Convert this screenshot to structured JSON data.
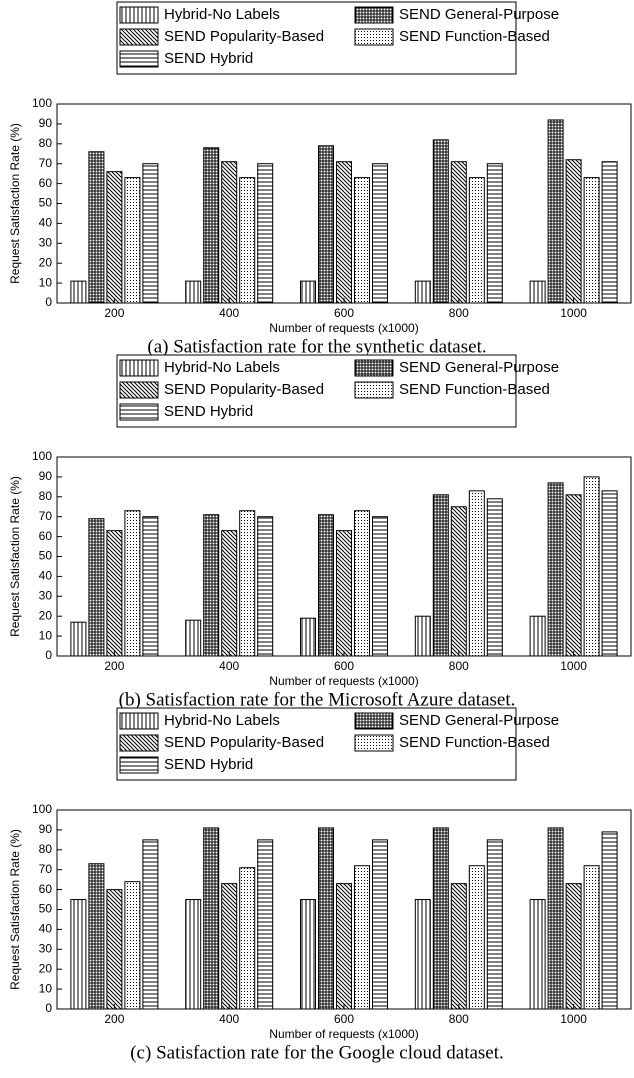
{
  "chart_data": [
    {
      "type": "bar",
      "caption": "(a) Satisfaction rate for the synthetic dataset.",
      "xlabel": "Number of requests (x1000)",
      "ylabel": "Request Satisfaction Rate (%)",
      "categories": [
        "200",
        "400",
        "600",
        "800",
        "1000"
      ],
      "ylim": [
        0,
        100
      ],
      "yticks": [
        0,
        10,
        20,
        30,
        40,
        50,
        60,
        70,
        80,
        90,
        100
      ],
      "series": [
        {
          "name": "Hybrid-No Labels",
          "color": "#000000",
          "hatch": "vertical",
          "values": [
            11,
            11,
            11,
            11,
            11
          ]
        },
        {
          "name": "SEND General-Purpose",
          "color": "#000000",
          "hatch": "grid",
          "values": [
            76,
            78,
            79,
            82,
            92
          ]
        },
        {
          "name": "SEND Popularity-Based",
          "color": "#000000",
          "hatch": "diagonal",
          "values": [
            66,
            71,
            71,
            71,
            72
          ]
        },
        {
          "name": "SEND Function-Based",
          "color": "#000000",
          "hatch": "dots",
          "values": [
            63,
            63,
            63,
            63,
            63
          ]
        },
        {
          "name": "SEND Hybrid",
          "color": "#000000",
          "hatch": "horizontal",
          "values": [
            70,
            70,
            70,
            70,
            71
          ]
        }
      ]
    },
    {
      "type": "bar",
      "caption": "(b) Satisfaction rate for the Microsoft Azure dataset.",
      "xlabel": "Number of requests (x1000)",
      "ylabel": "Request Satisfaction Rate (%)",
      "categories": [
        "200",
        "400",
        "600",
        "800",
        "1000"
      ],
      "ylim": [
        0,
        100
      ],
      "yticks": [
        0,
        10,
        20,
        30,
        40,
        50,
        60,
        70,
        80,
        90,
        100
      ],
      "series": [
        {
          "name": "Hybrid-No Labels",
          "color": "#000000",
          "hatch": "vertical",
          "values": [
            17,
            18,
            19,
            20,
            20
          ]
        },
        {
          "name": "SEND General-Purpose",
          "color": "#000000",
          "hatch": "grid",
          "values": [
            69,
            71,
            71,
            81,
            87
          ]
        },
        {
          "name": "SEND Popularity-Based",
          "color": "#000000",
          "hatch": "diagonal",
          "values": [
            63,
            63,
            63,
            75,
            81
          ]
        },
        {
          "name": "SEND Function-Based",
          "color": "#000000",
          "hatch": "dots",
          "values": [
            73,
            73,
            73,
            83,
            90
          ]
        },
        {
          "name": "SEND Hybrid",
          "color": "#000000",
          "hatch": "horizontal",
          "values": [
            70,
            70,
            70,
            79,
            83
          ]
        }
      ]
    },
    {
      "type": "bar",
      "caption": "(c) Satisfaction rate for the Google cloud dataset.",
      "xlabel": "Number of requests (x1000)",
      "ylabel": "Request Satisfaction Rate (%)",
      "categories": [
        "200",
        "400",
        "600",
        "800",
        "1000"
      ],
      "ylim": [
        0,
        100
      ],
      "yticks": [
        0,
        10,
        20,
        30,
        40,
        50,
        60,
        70,
        80,
        90,
        100
      ],
      "series": [
        {
          "name": "Hybrid-No Labels",
          "color": "#000000",
          "hatch": "vertical",
          "values": [
            55,
            55,
            55,
            55,
            55
          ]
        },
        {
          "name": "SEND General-Purpose",
          "color": "#000000",
          "hatch": "grid",
          "values": [
            73,
            91,
            91,
            91,
            91
          ]
        },
        {
          "name": "SEND Popularity-Based",
          "color": "#000000",
          "hatch": "diagonal",
          "values": [
            60,
            63,
            63,
            63,
            63
          ]
        },
        {
          "name": "SEND Function-Based",
          "color": "#000000",
          "hatch": "dots",
          "values": [
            64,
            71,
            72,
            72,
            72
          ]
        },
        {
          "name": "SEND Hybrid",
          "color": "#000000",
          "hatch": "horizontal",
          "values": [
            85,
            85,
            85,
            85,
            89
          ]
        }
      ]
    }
  ]
}
